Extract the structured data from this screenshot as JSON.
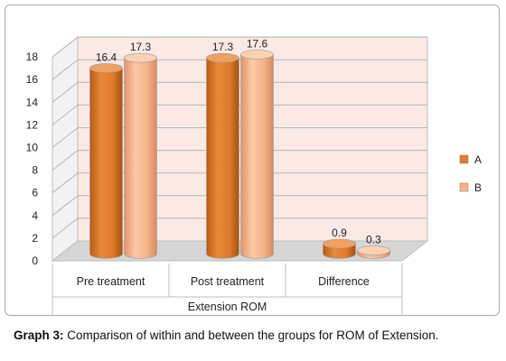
{
  "caption": {
    "label": "Graph 3:",
    "text": "Comparison of within and between the groups for ROM of Extension."
  },
  "colors": {
    "series_a": "#e07b2a",
    "series_b": "#f5b48a",
    "plot_back": "#fbe9e5",
    "plot_floor": "#d6d6d6"
  },
  "chart_data": {
    "type": "bar",
    "title": "",
    "xlabel": "Extension ROM",
    "ylabel": "",
    "categories": [
      "Pre treatment",
      "Post treatment",
      "Difference"
    ],
    "series": [
      {
        "name": "A",
        "values": [
          16.4,
          17.3,
          0.9
        ]
      },
      {
        "name": "B",
        "values": [
          17.3,
          17.6,
          0.3
        ]
      }
    ],
    "ylim": [
      0,
      18
    ],
    "yticks": [
      0,
      2,
      4,
      6,
      8,
      10,
      12,
      14,
      16,
      18
    ],
    "data_labels": [
      [
        "16.4",
        "17.3",
        "0.9"
      ],
      [
        "17.3",
        "17.6",
        "0.3"
      ]
    ],
    "grid": true,
    "legend": "right",
    "style": "3d-cylinder"
  }
}
